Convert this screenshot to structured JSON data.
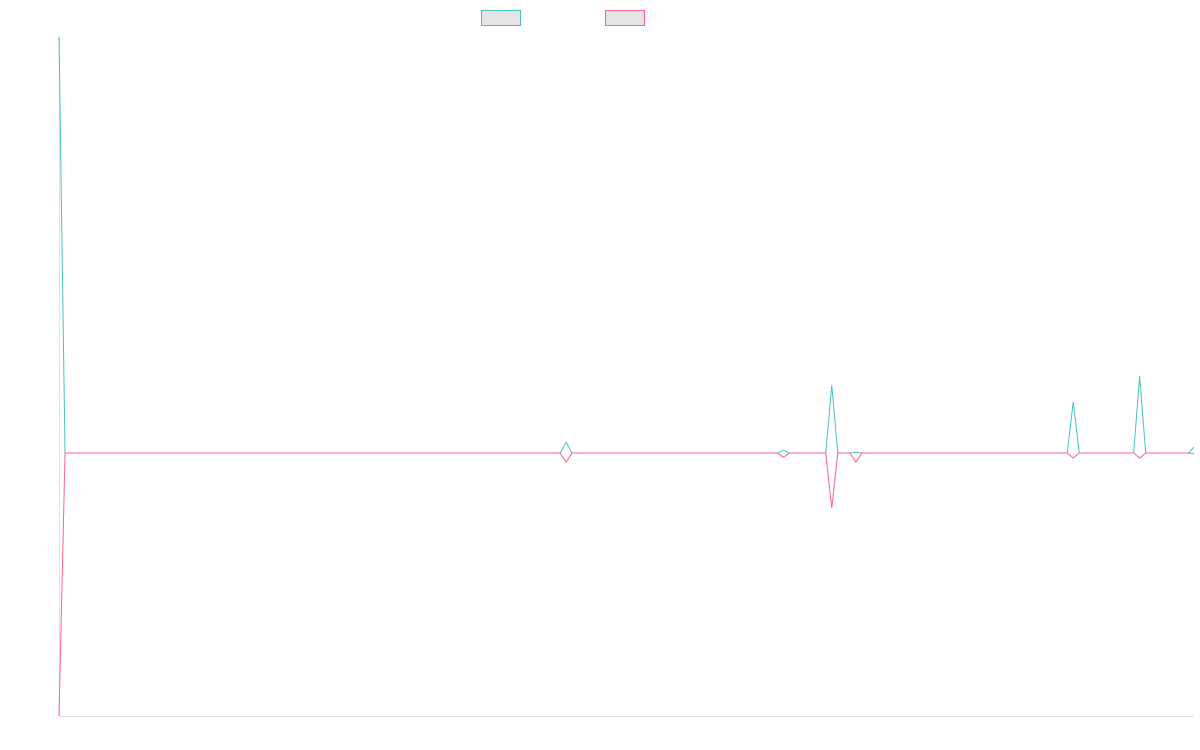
{
  "chart_data": {
    "type": "line",
    "title": "",
    "xlabel": "",
    "ylabel": "",
    "xlim": [
      0,
      188
    ],
    "ylim": [
      -0.632,
      1
    ],
    "grid": false,
    "legend_position": "top",
    "series": [
      {
        "color": "#4bc0c0",
        "legend_fill": "#e5e5e5",
        "default_value": 0,
        "points": [
          [
            0,
            1
          ],
          [
            84,
            0.026
          ],
          [
            120,
            0.007
          ],
          [
            128,
            0.163
          ],
          [
            132,
            0.002
          ],
          [
            168,
            0.123
          ],
          [
            179,
            0.185
          ],
          [
            188,
            0.014
          ]
        ]
      },
      {
        "color": "#ff6384",
        "legend_fill": "#e5e5e5",
        "default_value": 0,
        "points": [
          [
            0,
            -0.632
          ],
          [
            84,
            -0.022
          ],
          [
            120,
            -0.01
          ],
          [
            128,
            -0.132
          ],
          [
            132,
            -0.022
          ],
          [
            168,
            -0.012
          ],
          [
            179,
            -0.012
          ],
          [
            188,
            -0.002
          ]
        ]
      }
    ]
  }
}
